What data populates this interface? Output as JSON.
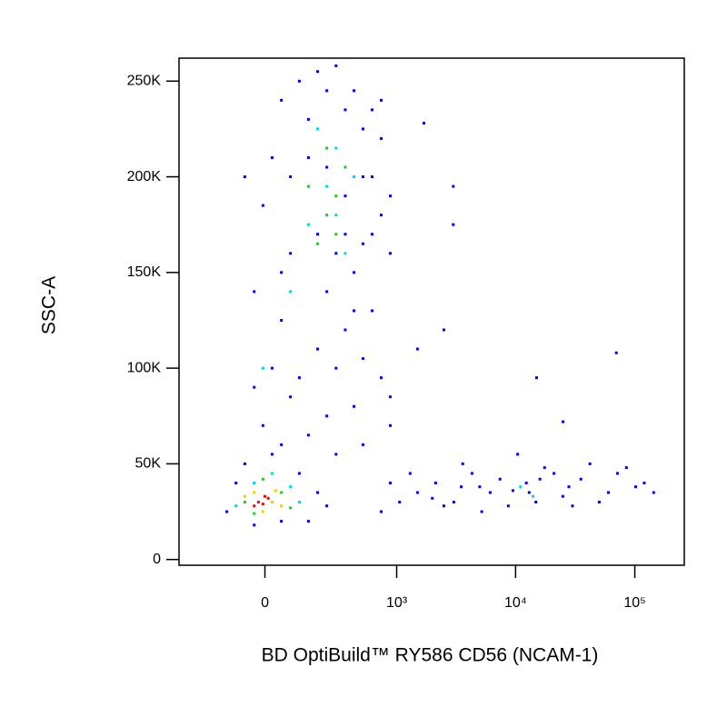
{
  "chart_data": {
    "type": "scatter",
    "xlabel": "BD OptiBuild™ RY586 CD56 (NCAM-1)",
    "ylabel": "SSC-A",
    "xscale": "biexponential",
    "xlim": [
      -400,
      260000
    ],
    "xticks": [
      0,
      {
        "value": 1000,
        "label": "10³"
      },
      {
        "value": 10000,
        "label": "10⁴"
      },
      {
        "value": 100000,
        "label": "10⁵"
      }
    ],
    "ylim": [
      -3000,
      262000
    ],
    "yticks": [
      0,
      {
        "value": 50000,
        "label": "50K"
      },
      {
        "value": 100000,
        "label": "100K"
      },
      {
        "value": 150000,
        "label": "150K"
      },
      {
        "value": 200000,
        "label": "200K"
      },
      {
        "value": 250000,
        "label": "250K"
      }
    ],
    "series": [
      {
        "color": "#0000ff",
        "x": [
          51,
          113,
          190,
          292,
          427,
          616,
          738,
          513,
          882,
          616,
          427,
          237,
          81,
          -6,
          22,
          149,
          356,
          513,
          738,
          882,
          616,
          356,
          190,
          51,
          -33,
          -63,
          22,
          113,
          292,
          513,
          738,
          882,
          427,
          237,
          81,
          -33,
          -6,
          51,
          149,
          292,
          513,
          882,
          427,
          616,
          738,
          237,
          149,
          81,
          356,
          190,
          292,
          51,
          237,
          513,
          356,
          1700,
          3000,
          3000,
          2500,
          1500,
          25000,
          15000,
          70000,
          -127,
          -93,
          -63,
          22,
          113,
          190,
          149,
          -33,
          51,
          237,
          1058,
          1500,
          2130,
          3030,
          4310,
          6120,
          8690,
          12300,
          17500,
          24900,
          35300,
          50300,
          71500,
          101600,
          144000,
          738,
          882,
          1300,
          2500,
          3600,
          5200,
          7400,
          10400,
          14800,
          21000,
          30000,
          42000,
          60000,
          85000,
          120000,
          5000,
          9500,
          13000,
          16000,
          3500,
          2000,
          28000
        ],
        "y": [
          240000,
          250000,
          255000,
          258000,
          245000,
          235000,
          220000,
          200000,
          190000,
          170000,
          150000,
          140000,
          160000,
          185000,
          210000,
          230000,
          235000,
          225000,
          180000,
          160000,
          130000,
          120000,
          110000,
          125000,
          140000,
          200000,
          100000,
          95000,
          100000,
          105000,
          95000,
          85000,
          80000,
          75000,
          85000,
          90000,
          70000,
          60000,
          65000,
          55000,
          60000,
          70000,
          130000,
          200000,
          240000,
          245000,
          210000,
          200000,
          190000,
          170000,
          160000,
          150000,
          205000,
          165000,
          170000,
          228000,
          195000,
          175000,
          120000,
          110000,
          72000,
          95000,
          108000,
          25000,
          40000,
          50000,
          55000,
          45000,
          35000,
          20000,
          18000,
          20000,
          28000,
          30000,
          35000,
          40000,
          30000,
          45000,
          35000,
          28000,
          40000,
          48000,
          33000,
          42000,
          30000,
          45000,
          38000,
          35000,
          25000,
          40000,
          45000,
          28000,
          50000,
          25000,
          42000,
          55000,
          30000,
          45000,
          28000,
          50000,
          35000,
          48000,
          40000,
          38000,
          36000,
          35000,
          42000,
          38000,
          32000,
          38000
        ]
      },
      {
        "color": "#00d8e0",
        "x": [
          237,
          292,
          149,
          356,
          190,
          427,
          81,
          292,
          -33,
          81,
          -93,
          22,
          113,
          11000,
          14000,
          -6
        ],
        "y": [
          195000,
          215000,
          175000,
          160000,
          225000,
          200000,
          140000,
          180000,
          40000,
          38000,
          28000,
          45000,
          30000,
          38000,
          33000,
          100000
        ]
      },
      {
        "color": "#30c030",
        "x": [
          237,
          292,
          190,
          356,
          149,
          237,
          292,
          -63,
          51,
          -6,
          81,
          -33
        ],
        "y": [
          180000,
          190000,
          165000,
          205000,
          195000,
          215000,
          170000,
          30000,
          35000,
          42000,
          27000,
          24000
        ]
      },
      {
        "color": "#f0d000",
        "x": [
          -33,
          22,
          51,
          -63,
          -6,
          33
        ],
        "y": [
          35000,
          30000,
          28000,
          33000,
          25000,
          36000
        ]
      },
      {
        "color": "#ff0000",
        "x": [
          -20,
          -6,
          10,
          -33,
          0
        ],
        "y": [
          30000,
          29000,
          32000,
          28000,
          33000
        ]
      }
    ]
  }
}
